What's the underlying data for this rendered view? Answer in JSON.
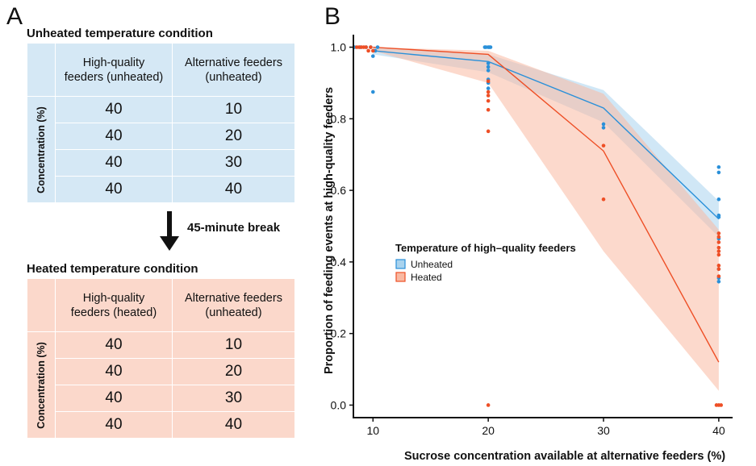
{
  "panels": {
    "a": "A",
    "b": "B"
  },
  "unheated": {
    "title": "Unheated temperature condition",
    "col1": [
      "High-quality",
      "feeders (unheated)"
    ],
    "col2": [
      "Alternative feeders",
      "(unheated)"
    ],
    "row_label": "Concentration (%)",
    "rows": [
      [
        "40",
        "10"
      ],
      [
        "40",
        "20"
      ],
      [
        "40",
        "30"
      ],
      [
        "40",
        "40"
      ]
    ]
  },
  "break_label": "45-minute break",
  "heated": {
    "title": "Heated temperature condition",
    "col1": [
      "High-quality",
      "feeders (heated)"
    ],
    "col2": [
      "Alternative feeders",
      "(unheated)"
    ],
    "row_label": "Concentration (%)",
    "rows": [
      [
        "40",
        "10"
      ],
      [
        "40",
        "20"
      ],
      [
        "40",
        "30"
      ],
      [
        "40",
        "40"
      ]
    ]
  },
  "colors": {
    "unheated": "#2a90d9",
    "heated": "#ee4f26",
    "unheated_band": "#a9d3ee",
    "heated_band": "#f9b9a2"
  },
  "chart_data": {
    "type": "line",
    "xlabel": "Sucrose concentration available at alternative feeders (%)",
    "ylabel": "Proportion of feeding events at high-quality feeders",
    "xticks": [
      10,
      20,
      30,
      40
    ],
    "yticks": [
      0.0,
      0.2,
      0.4,
      0.6,
      0.8,
      1.0
    ],
    "ytick_labels": [
      "0.0",
      "0.2",
      "0.4",
      "0.6",
      "0.8",
      "1.0"
    ],
    "xlim": [
      8.3,
      41.2
    ],
    "ylim": [
      -0.035,
      1.035
    ],
    "grid": false,
    "legend": {
      "title": "Temperature of high–quality feeders",
      "position": "middle-left"
    },
    "series": [
      {
        "name": "Unheated",
        "x": [
          10,
          20,
          30,
          40
        ],
        "fit": [
          0.99,
          0.96,
          0.83,
          0.52
        ],
        "ci_lower": [
          0.98,
          0.93,
          0.79,
          0.47
        ],
        "ci_upper": [
          1.0,
          0.98,
          0.88,
          0.57
        ],
        "points": [
          [
            8.4,
            1.0
          ],
          [
            8.9,
            1.0
          ],
          [
            9.4,
            1.0
          ],
          [
            9.8,
            1.0
          ],
          [
            10.0,
            0.975
          ],
          [
            10.0,
            0.875
          ],
          [
            10.2,
            0.99
          ],
          [
            10.4,
            1.0
          ],
          [
            19.7,
            1.0
          ],
          [
            19.8,
            1.0
          ],
          [
            20.0,
            1.0
          ],
          [
            20.1,
            1.0
          ],
          [
            20.2,
            1.0
          ],
          [
            20.0,
            0.955
          ],
          [
            20.0,
            0.945
          ],
          [
            20.0,
            0.935
          ],
          [
            20.0,
            0.91
          ],
          [
            20.0,
            0.9
          ],
          [
            20.0,
            0.885
          ],
          [
            30.0,
            0.785
          ],
          [
            30.0,
            0.775
          ],
          [
            40.0,
            0.665
          ],
          [
            40.0,
            0.65
          ],
          [
            40.0,
            0.575
          ],
          [
            40.0,
            0.53
          ],
          [
            40.0,
            0.525
          ],
          [
            40.0,
            0.465
          ],
          [
            40.0,
            0.38
          ],
          [
            40.0,
            0.355
          ],
          [
            40.0,
            0.345
          ]
        ]
      },
      {
        "name": "Heated",
        "x": [
          10,
          20,
          30,
          40
        ],
        "fit": [
          1.0,
          0.98,
          0.71,
          0.12
        ],
        "ci_lower": [
          0.99,
          0.9,
          0.43,
          0.04
        ],
        "ci_upper": [
          1.0,
          0.99,
          0.87,
          0.49
        ],
        "points": [
          [
            8.6,
            1.0
          ],
          [
            8.8,
            1.0
          ],
          [
            9.0,
            1.0
          ],
          [
            9.2,
            1.0
          ],
          [
            9.4,
            1.0
          ],
          [
            9.6,
            0.99
          ],
          [
            9.8,
            1.0
          ],
          [
            10.0,
            0.99
          ],
          [
            20.0,
            0.905
          ],
          [
            20.0,
            0.875
          ],
          [
            20.0,
            0.865
          ],
          [
            20.0,
            0.85
          ],
          [
            20.0,
            0.825
          ],
          [
            20.0,
            0.765
          ],
          [
            20.0,
            0.0
          ],
          [
            30.0,
            0.725
          ],
          [
            30.0,
            0.575
          ],
          [
            40.0,
            0.48
          ],
          [
            40.0,
            0.47
          ],
          [
            40.0,
            0.455
          ],
          [
            40.0,
            0.44
          ],
          [
            40.0,
            0.43
          ],
          [
            40.0,
            0.42
          ],
          [
            40.0,
            0.39
          ],
          [
            40.0,
            0.38
          ],
          [
            40.0,
            0.36
          ],
          [
            39.8,
            0.0
          ],
          [
            40.0,
            0.0
          ],
          [
            40.2,
            0.0
          ]
        ]
      }
    ]
  }
}
